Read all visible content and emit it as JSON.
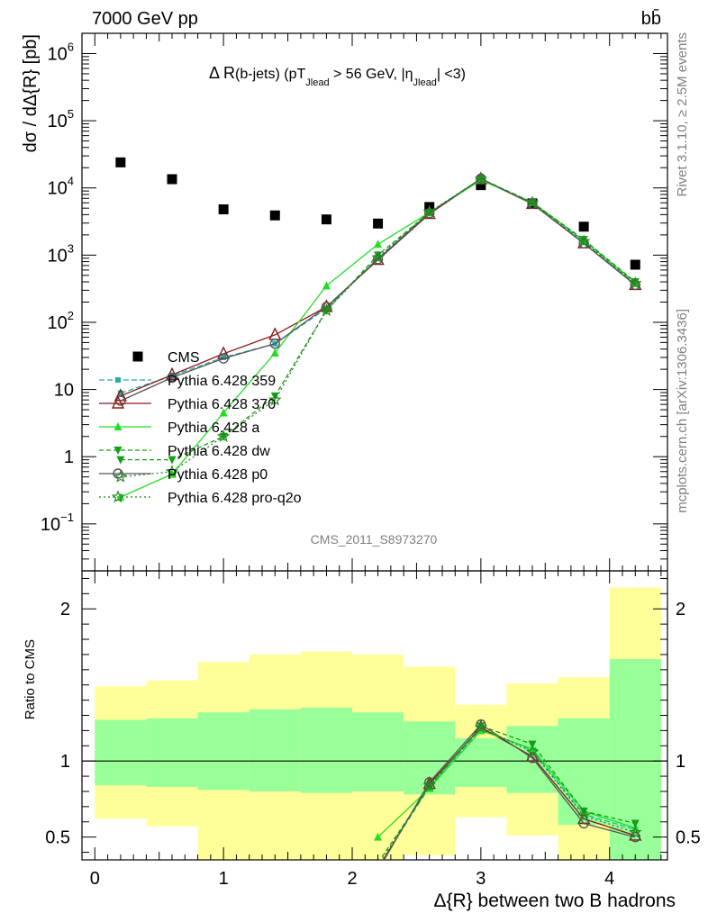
{
  "header": {
    "energy_label": "7000 GeV pp",
    "process_label": "bb̄"
  },
  "side_labels": {
    "rivet": "Rivet 3.1.10, ≥ 2.5M events",
    "mcplots": "mcplots.cern.ch [arXiv:1306.3436]"
  },
  "chart_data": [
    {
      "type": "scatter",
      "panel": "main",
      "title": "Δ R(b-jets) (pT_Jlead > 56 GeV, |η_Jlead| <3)",
      "title_parts": {
        "a": "Δ R",
        "b": "(b-jets) (pT",
        "sub1": "Jlead",
        "c": " >  56 GeV, |η",
        "sub2": "Jlead",
        "d": "| <3)"
      },
      "watermark": "CMS_2011_S8973270",
      "ylabel": "dσ / dΔ{R} [pb]",
      "yscale": "log",
      "ylim": [
        0.02,
        2000000
      ],
      "xlim": [
        -0.1,
        4.45
      ],
      "yticks": [
        {
          "v": 0.1,
          "m": "10",
          "e": "−1"
        },
        {
          "v": 1,
          "m": "1",
          "e": ""
        },
        {
          "v": 10,
          "m": "10",
          "e": ""
        },
        {
          "v": 100,
          "m": "10",
          "e": "2"
        },
        {
          "v": 1000,
          "m": "10",
          "e": "3"
        },
        {
          "v": 10000,
          "m": "10",
          "e": "4"
        },
        {
          "v": 100000,
          "m": "10",
          "e": "5"
        },
        {
          "v": 1000000,
          "m": "10",
          "e": "6"
        }
      ],
      "x": [
        0.2,
        0.6,
        1.0,
        1.4,
        1.8,
        2.2,
        2.6,
        3.0,
        3.4,
        3.8,
        4.2
      ],
      "series": [
        {
          "name": "CMS",
          "color": "#000000",
          "marker": "square",
          "dash": "",
          "values": [
            24000,
            13500,
            4800,
            3900,
            3400,
            2950,
            5200,
            11000,
            5900,
            2650,
            720
          ]
        },
        {
          "name": "Pythia 6.428 359",
          "color": "#20b2aa",
          "marker": "small-square",
          "dash": "6,3",
          "values": [
            8.8,
            16,
            30,
            48,
            160,
            900,
            4300,
            13300,
            5900,
            1550,
            370
          ]
        },
        {
          "name": "Pythia 6.428 370",
          "color": "#8b1a1a",
          "marker": "open-triangle",
          "dash": "",
          "values": [
            8.0,
            16.5,
            34,
            65,
            170,
            850,
            4100,
            13500,
            5800,
            1500,
            360
          ]
        },
        {
          "name": "Pythia 6.428 a",
          "color": "#22dd22",
          "marker": "triangle",
          "dash": "",
          "values": [
            0.25,
            0.55,
            4.5,
            35,
            350,
            1450,
            4300,
            13000,
            6100,
            1650,
            390
          ]
        },
        {
          "name": "Pythia 6.428 dw",
          "color": "#14a014",
          "marker": "triangle-down",
          "dash": "5,3",
          "values": [
            0.9,
            0.9,
            2.0,
            8,
            150,
            1000,
            4300,
            13700,
            6100,
            1700,
            400
          ]
        },
        {
          "name": "Pythia 6.428 p0",
          "color": "#555555",
          "marker": "open-circle",
          "dash": "",
          "values": [
            6.8,
            15,
            29,
            48,
            170,
            870,
            4200,
            13800,
            5800,
            1500,
            360
          ]
        },
        {
          "name": "Pythia 6.428 pro-q2o",
          "color": "#228b22",
          "marker": "star",
          "dash": "2,3",
          "values": [
            0.5,
            0.6,
            2.0,
            7,
            150,
            920,
            4400,
            13600,
            6000,
            1600,
            380
          ]
        }
      ]
    },
    {
      "type": "line",
      "panel": "ratio",
      "ylabel": "Ratio to CMS",
      "xlabel": "Δ{R} between two B hadrons",
      "ylim": [
        0.35,
        2.25
      ],
      "xlim": [
        -0.1,
        4.45
      ],
      "xticks": [
        "0",
        "1",
        "2",
        "3",
        "4"
      ],
      "xtick_values": [
        0,
        1,
        2,
        3,
        4
      ],
      "yticks": [
        "0.5",
        "1",
        "2"
      ],
      "ytick_values": [
        0.5,
        1,
        2
      ],
      "bins": [
        [
          0.0,
          0.4
        ],
        [
          0.4,
          0.8
        ],
        [
          0.8,
          1.2
        ],
        [
          1.2,
          1.6
        ],
        [
          1.6,
          2.0
        ],
        [
          2.0,
          2.4
        ],
        [
          2.4,
          2.8
        ],
        [
          2.8,
          3.2
        ],
        [
          3.2,
          3.6
        ],
        [
          3.6,
          4.0
        ],
        [
          4.0,
          4.4
        ]
      ],
      "band_1sigma": [
        [
          0.84,
          1.27
        ],
        [
          0.83,
          1.28
        ],
        [
          0.81,
          1.32
        ],
        [
          0.8,
          1.34
        ],
        [
          0.79,
          1.35
        ],
        [
          0.8,
          1.32
        ],
        [
          0.78,
          1.26
        ],
        [
          0.83,
          1.15
        ],
        [
          0.79,
          1.23
        ],
        [
          0.58,
          1.28
        ],
        [
          0.35,
          1.67
        ]
      ],
      "band_2sigma": [
        [
          0.62,
          1.49
        ],
        [
          0.57,
          1.53
        ],
        [
          0.35,
          1.65
        ],
        [
          0.35,
          1.7
        ],
        [
          0.35,
          1.72
        ],
        [
          0.35,
          1.7
        ],
        [
          0.38,
          1.62
        ],
        [
          0.63,
          1.37
        ],
        [
          0.51,
          1.51
        ],
        [
          0.35,
          1.55
        ],
        [
          0.35,
          2.14
        ]
      ],
      "x": [
        0.2,
        0.6,
        1.0,
        1.4,
        1.8,
        2.2,
        2.6,
        3.0,
        3.4,
        3.8,
        4.2
      ],
      "series": [
        {
          "name": "Pythia 6.428 359",
          "color": "#20b2aa",
          "dash": "6,3",
          "marker": "small-square",
          "values": [
            null,
            null,
            null,
            null,
            null,
            0.3,
            0.83,
            1.21,
            1.07,
            0.65,
            0.55
          ]
        },
        {
          "name": "Pythia 6.428 370",
          "color": "#8b1a1a",
          "dash": "",
          "marker": "open-triangle",
          "values": [
            null,
            null,
            null,
            null,
            null,
            0.29,
            0.85,
            1.22,
            1.03,
            0.62,
            0.51
          ]
        },
        {
          "name": "Pythia 6.428 a",
          "color": "#22dd22",
          "dash": "",
          "marker": "triangle",
          "values": [
            null,
            null,
            null,
            null,
            null,
            0.5,
            0.82,
            1.2,
            1.08,
            0.67,
            0.56
          ]
        },
        {
          "name": "Pythia 6.428 dw",
          "color": "#14a014",
          "dash": "5,3",
          "marker": "triangle-down",
          "values": [
            null,
            null,
            null,
            null,
            null,
            0.33,
            0.83,
            1.23,
            1.11,
            0.67,
            0.59
          ]
        },
        {
          "name": "Pythia 6.428 p0",
          "color": "#555555",
          "dash": "",
          "marker": "open-circle",
          "values": [
            null,
            null,
            null,
            null,
            null,
            0.28,
            0.86,
            1.24,
            1.02,
            0.59,
            0.5
          ]
        },
        {
          "name": "Pythia 6.428 pro-q2o",
          "color": "#228b22",
          "dash": "2,3",
          "marker": "star",
          "values": [
            null,
            null,
            null,
            null,
            null,
            0.31,
            0.84,
            1.22,
            1.06,
            0.64,
            0.53
          ]
        }
      ]
    }
  ]
}
